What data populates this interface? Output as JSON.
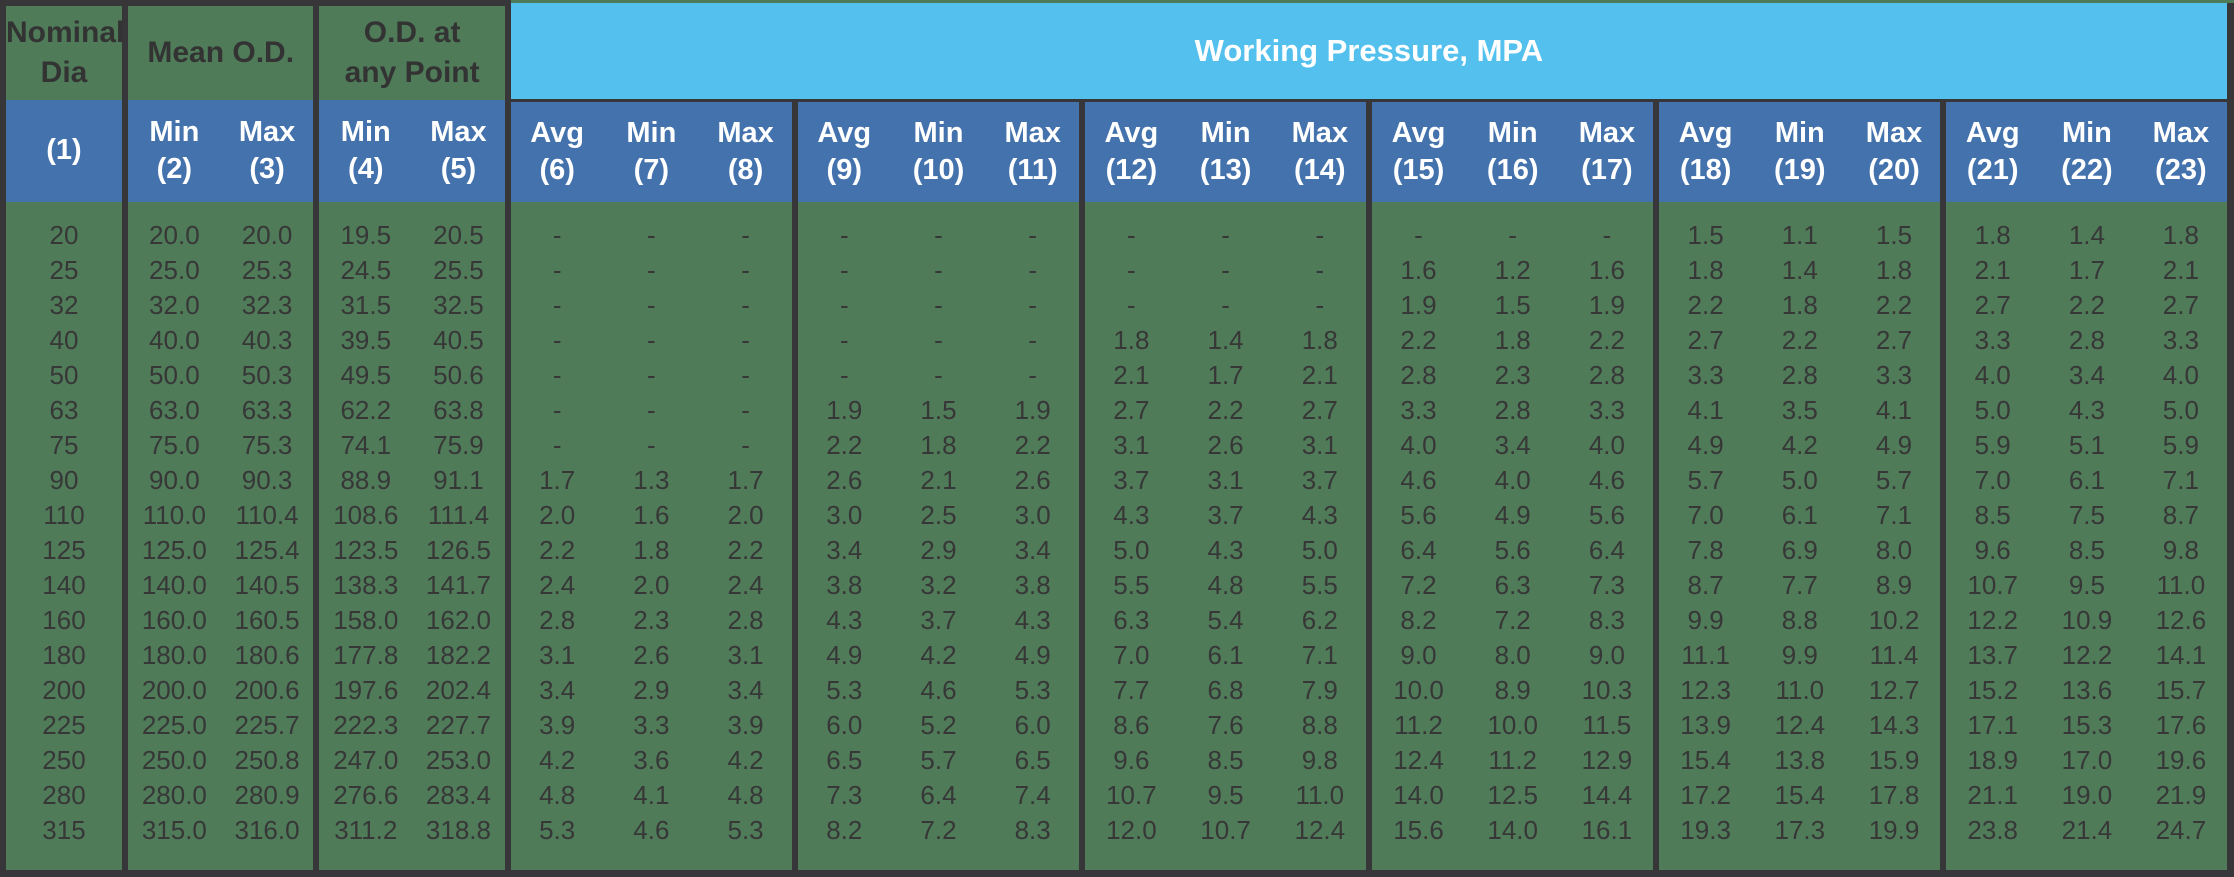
{
  "table": {
    "groups": [
      {
        "label": "Nominal\nDia"
      },
      {
        "label": "Mean O.D."
      },
      {
        "label": "O.D. at\nany Point"
      },
      {
        "label": "Working Pressure, MPA"
      }
    ],
    "subheaders": [
      {
        "top": "",
        "num": "(1)"
      },
      {
        "top": "Min",
        "num": "(2)"
      },
      {
        "top": "Max",
        "num": "(3)"
      },
      {
        "top": "Min",
        "num": "(4)"
      },
      {
        "top": "Max",
        "num": "(5)"
      },
      {
        "top": "Avg",
        "num": "(6)"
      },
      {
        "top": "Min",
        "num": "(7)"
      },
      {
        "top": "Max",
        "num": "(8)"
      },
      {
        "top": "Avg",
        "num": "(9)"
      },
      {
        "top": "Min",
        "num": "(10)"
      },
      {
        "top": "Max",
        "num": "(11)"
      },
      {
        "top": "Avg",
        "num": "(12)"
      },
      {
        "top": "Min",
        "num": "(13)"
      },
      {
        "top": "Max",
        "num": "(14)"
      },
      {
        "top": "Avg",
        "num": "(15)"
      },
      {
        "top": "Min",
        "num": "(16)"
      },
      {
        "top": "Max",
        "num": "(17)"
      },
      {
        "top": "Avg",
        "num": "(18)"
      },
      {
        "top": "Min",
        "num": "(19)"
      },
      {
        "top": "Max",
        "num": "(20)"
      },
      {
        "top": "Avg",
        "num": "(21)"
      },
      {
        "top": "Min",
        "num": "(22)"
      },
      {
        "top": "Max",
        "num": "(23)"
      }
    ],
    "rows": [
      [
        "20",
        "20.0",
        "20.0",
        "19.5",
        "20.5",
        "-",
        "-",
        "-",
        "-",
        "-",
        "-",
        "-",
        "-",
        "-",
        "-",
        "-",
        "-",
        "1.5",
        "1.1",
        "1.5",
        "1.8",
        "1.4",
        "1.8"
      ],
      [
        "25",
        "25.0",
        "25.3",
        "24.5",
        "25.5",
        "-",
        "-",
        "-",
        "-",
        "-",
        "-",
        "-",
        "-",
        "-",
        "1.6",
        "1.2",
        "1.6",
        "1.8",
        "1.4",
        "1.8",
        "2.1",
        "1.7",
        "2.1"
      ],
      [
        "32",
        "32.0",
        "32.3",
        "31.5",
        "32.5",
        "-",
        "-",
        "-",
        "-",
        "-",
        "-",
        "-",
        "-",
        "-",
        "1.9",
        "1.5",
        "1.9",
        "2.2",
        "1.8",
        "2.2",
        "2.7",
        "2.2",
        "2.7"
      ],
      [
        "40",
        "40.0",
        "40.3",
        "39.5",
        "40.5",
        "-",
        "-",
        "-",
        "-",
        "-",
        "-",
        "1.8",
        "1.4",
        "1.8",
        "2.2",
        "1.8",
        "2.2",
        "2.7",
        "2.2",
        "2.7",
        "3.3",
        "2.8",
        "3.3"
      ],
      [
        "50",
        "50.0",
        "50.3",
        "49.5",
        "50.6",
        "-",
        "-",
        "-",
        "-",
        "-",
        "-",
        "2.1",
        "1.7",
        "2.1",
        "2.8",
        "2.3",
        "2.8",
        "3.3",
        "2.8",
        "3.3",
        "4.0",
        "3.4",
        "4.0"
      ],
      [
        "63",
        "63.0",
        "63.3",
        "62.2",
        "63.8",
        "-",
        "-",
        "-",
        "1.9",
        "1.5",
        "1.9",
        "2.7",
        "2.2",
        "2.7",
        "3.3",
        "2.8",
        "3.3",
        "4.1",
        "3.5",
        "4.1",
        "5.0",
        "4.3",
        "5.0"
      ],
      [
        "75",
        "75.0",
        "75.3",
        "74.1",
        "75.9",
        "-",
        "-",
        "-",
        "2.2",
        "1.8",
        "2.2",
        "3.1",
        "2.6",
        "3.1",
        "4.0",
        "3.4",
        "4.0",
        "4.9",
        "4.2",
        "4.9",
        "5.9",
        "5.1",
        "5.9"
      ],
      [
        "90",
        "90.0",
        "90.3",
        "88.9",
        "91.1",
        "1.7",
        "1.3",
        "1.7",
        "2.6",
        "2.1",
        "2.6",
        "3.7",
        "3.1",
        "3.7",
        "4.6",
        "4.0",
        "4.6",
        "5.7",
        "5.0",
        "5.7",
        "7.0",
        "6.1",
        "7.1"
      ],
      [
        "110",
        "110.0",
        "110.4",
        "108.6",
        "111.4",
        "2.0",
        "1.6",
        "2.0",
        "3.0",
        "2.5",
        "3.0",
        "4.3",
        "3.7",
        "4.3",
        "5.6",
        "4.9",
        "5.6",
        "7.0",
        "6.1",
        "7.1",
        "8.5",
        "7.5",
        "8.7"
      ],
      [
        "125",
        "125.0",
        "125.4",
        "123.5",
        "126.5",
        "2.2",
        "1.8",
        "2.2",
        "3.4",
        "2.9",
        "3.4",
        "5.0",
        "4.3",
        "5.0",
        "6.4",
        "5.6",
        "6.4",
        "7.8",
        "6.9",
        "8.0",
        "9.6",
        "8.5",
        "9.8"
      ],
      [
        "140",
        "140.0",
        "140.5",
        "138.3",
        "141.7",
        "2.4",
        "2.0",
        "2.4",
        "3.8",
        "3.2",
        "3.8",
        "5.5",
        "4.8",
        "5.5",
        "7.2",
        "6.3",
        "7.3",
        "8.7",
        "7.7",
        "8.9",
        "10.7",
        "9.5",
        "11.0"
      ],
      [
        "160",
        "160.0",
        "160.5",
        "158.0",
        "162.0",
        "2.8",
        "2.3",
        "2.8",
        "4.3",
        "3.7",
        "4.3",
        "6.3",
        "5.4",
        "6.2",
        "8.2",
        "7.2",
        "8.3",
        "9.9",
        "8.8",
        "10.2",
        "12.2",
        "10.9",
        "12.6"
      ],
      [
        "180",
        "180.0",
        "180.6",
        "177.8",
        "182.2",
        "3.1",
        "2.6",
        "3.1",
        "4.9",
        "4.2",
        "4.9",
        "7.0",
        "6.1",
        "7.1",
        "9.0",
        "8.0",
        "9.0",
        "11.1",
        "9.9",
        "11.4",
        "13.7",
        "12.2",
        "14.1"
      ],
      [
        "200",
        "200.0",
        "200.6",
        "197.6",
        "202.4",
        "3.4",
        "2.9",
        "3.4",
        "5.3",
        "4.6",
        "5.3",
        "7.7",
        "6.8",
        "7.9",
        "10.0",
        "8.9",
        "10.3",
        "12.3",
        "11.0",
        "12.7",
        "15.2",
        "13.6",
        "15.7"
      ],
      [
        "225",
        "225.0",
        "225.7",
        "222.3",
        "227.7",
        "3.9",
        "3.3",
        "3.9",
        "6.0",
        "5.2",
        "6.0",
        "8.6",
        "7.6",
        "8.8",
        "11.2",
        "10.0",
        "11.5",
        "13.9",
        "12.4",
        "14.3",
        "17.1",
        "15.3",
        "17.6"
      ],
      [
        "250",
        "250.0",
        "250.8",
        "247.0",
        "253.0",
        "4.2",
        "3.6",
        "4.2",
        "6.5",
        "5.7",
        "6.5",
        "9.6",
        "8.5",
        "9.8",
        "12.4",
        "11.2",
        "12.9",
        "15.4",
        "13.8",
        "15.9",
        "18.9",
        "17.0",
        "19.6"
      ],
      [
        "280",
        "280.0",
        "280.9",
        "276.6",
        "283.4",
        "4.8",
        "4.1",
        "4.8",
        "7.3",
        "6.4",
        "7.4",
        "10.7",
        "9.5",
        "11.0",
        "14.0",
        "12.5",
        "14.4",
        "17.2",
        "15.4",
        "17.8",
        "21.1",
        "19.0",
        "21.9"
      ],
      [
        "315",
        "315.0",
        "316.0",
        "311.2",
        "318.8",
        "5.3",
        "4.6",
        "5.3",
        "8.2",
        "7.2",
        "8.3",
        "12.0",
        "10.7",
        "12.4",
        "15.6",
        "14.0",
        "16.1",
        "19.3",
        "17.3",
        "19.9",
        "23.8",
        "21.4",
        "24.7"
      ]
    ]
  },
  "colors": {
    "header_green": "#4f7b59",
    "header_blue": "#4372ad",
    "band_light_blue": "#53c0ee",
    "border_dark": "#37373a",
    "text_dark": "#373737",
    "text_light": "#ffffff"
  }
}
